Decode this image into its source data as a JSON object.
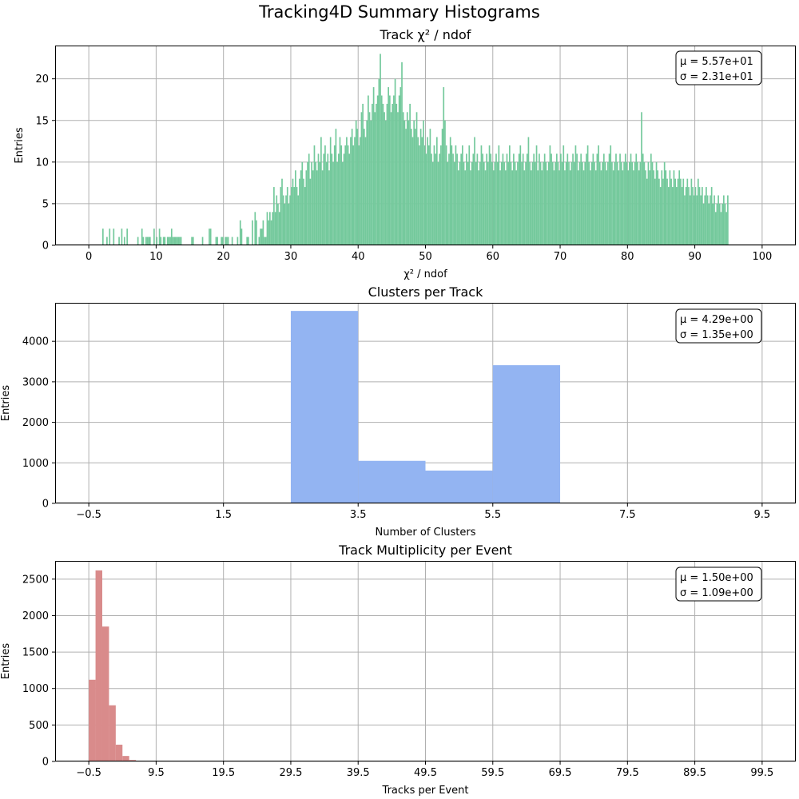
{
  "figure": {
    "title": "Tracking4D Summary Histograms"
  },
  "colors": {
    "chi2": "#74c99c",
    "clusters": "#93b4f2",
    "multiplicity": "#d98b8b"
  },
  "chart_data": [
    {
      "type": "bar",
      "title": "Track χ² / ndof",
      "xlabel": "χ² / ndof",
      "ylabel": "Entries",
      "xlim": [
        -5,
        105
      ],
      "ylim": [
        0,
        24
      ],
      "xticks": [
        0,
        10,
        20,
        30,
        40,
        50,
        60,
        70,
        80,
        90,
        100
      ],
      "xtick_labels": [
        "0",
        "10",
        "20",
        "30",
        "40",
        "50",
        "60",
        "70",
        "80",
        "90",
        "100"
      ],
      "yticks": [
        0,
        5,
        10,
        15,
        20
      ],
      "ytick_labels": [
        "0",
        "5",
        "10",
        "15",
        "20"
      ],
      "bin_start": 0,
      "bin_width": 0.2,
      "counts_text": "0,0,0,0,0,0,0,0,0,0,2,0,0,1,0,2,0,0,2,0,0,0,1,0,2,0,1,0,2,0,0,0,0,0,0,0,1,0,0,2,1,0,1,1,1,1,0,0,2,0,1,0,2,1,0,1,1,0,1,1,1,2,1,1,1,1,1,1,1,0,0,0,0,0,0,0,1,1,0,0,0,0,0,0,1,0,0,0,0,2,2,0,0,0,1,1,0,0,1,1,0,1,1,1,0,0,1,0,0,0,1,0,3,2,0,0,0,1,1,0,0,3,0,4,3,0,1,2,2,3,1,1,4,3,4,3,4,7,4,6,5,4,7,8,6,5,6,7,5,6,7,8,7,9,7,6,8,9,10,8,7,9,10,11,8,10,9,12,10,9,11,10,13,9,11,12,10,11,9,13,11,10,12,14,10,11,13,12,10,11,12,13,12,11,13,14,12,13,15,14,12,13,16,17,14,13,15,18,16,15,17,19,16,17,18,20,23,18,17,16,15,17,19,18,16,17,18,20,17,16,18,19,22,16,15,14,16,15,17,14,13,15,14,16,13,12,14,13,15,12,11,13,12,14,11,10,12,11,13,10,11,12,14,19,15,12,10,11,13,12,11,10,12,11,9,10,11,12,10,9,11,10,12,9,10,11,13,10,11,9,10,12,11,10,9,11,10,12,11,10,9,10,11,10,12,9,10,11,10,9,11,10,12,10,9,11,10,9,10,11,12,10,11,9,10,11,13,10,9,10,11,10,12,9,11,10,9,10,11,10,9,10,12,11,10,9,10,11,10,9,11,10,12,9,10,11,10,9,10,11,10,12,11,9,10,11,10,9,10,11,12,10,9,10,11,10,9,11,12,10,9,10,11,10,9,10,11,12,10,9,10,11,10,9,11,10,9,10,11,10,9,10,11,10,9,10,11,10,9,10,16,11,10,9,8,10,9,11,10,9,8,10,9,8,7,9,8,10,9,8,7,9,8,7,9,8,7,8,9,8,7,8,6,7,8,7,6,8,7,6,7,6,8,7,6,7,5,6,7,6,5,6,7,5,6,4,5,6,5,4,5,6,5,4,6"
    },
    {
      "type": "bar",
      "title": "Clusters per Track",
      "xlabel": "Number of Clusters",
      "ylabel": "Entries",
      "xlim": [
        -1,
        10
      ],
      "ylim": [
        0,
        4950
      ],
      "xticks": [
        -0.5,
        1.5,
        3.5,
        5.5,
        7.5,
        9.5
      ],
      "xtick_labels": [
        "−0.5",
        "1.5",
        "3.5",
        "5.5",
        "7.5",
        "9.5"
      ],
      "yticks": [
        0,
        1000,
        2000,
        3000,
        4000
      ],
      "ytick_labels": [
        "0",
        "1000",
        "2000",
        "3000",
        "4000"
      ],
      "bin_start": -0.5,
      "bin_width": 1,
      "counts": [
        0,
        0,
        0,
        4750,
        1050,
        810,
        3410,
        0,
        0,
        0
      ]
    },
    {
      "type": "bar",
      "title": "Track Multiplicity per Event",
      "xlabel": "Tracks per Event",
      "ylabel": "Entries",
      "xlim": [
        -5.5,
        104.5
      ],
      "ylim": [
        0,
        2750
      ],
      "xticks": [
        -0.5,
        9.5,
        19.5,
        29.5,
        39.5,
        49.5,
        59.5,
        69.5,
        79.5,
        89.5,
        99.5
      ],
      "xtick_labels": [
        "−0.5",
        "9.5",
        "19.5",
        "29.5",
        "39.5",
        "49.5",
        "59.5",
        "69.5",
        "79.5",
        "89.5",
        "99.5"
      ],
      "yticks": [
        0,
        500,
        1000,
        1500,
        2000,
        2500
      ],
      "ytick_labels": [
        "0",
        "500",
        "1000",
        "1500",
        "2000",
        "2500"
      ],
      "bin_start": -0.5,
      "bin_width": 1,
      "counts": [
        1120,
        2620,
        1850,
        770,
        230,
        75,
        20,
        8,
        3,
        1,
        1
      ]
    }
  ],
  "stats": [
    {
      "mu": "μ = 5.57e+01",
      "sigma": "σ = 2.31e+01"
    },
    {
      "mu": "μ = 4.29e+00",
      "sigma": "σ = 1.35e+00"
    },
    {
      "mu": "μ = 1.50e+00",
      "sigma": "σ = 1.09e+00"
    }
  ]
}
